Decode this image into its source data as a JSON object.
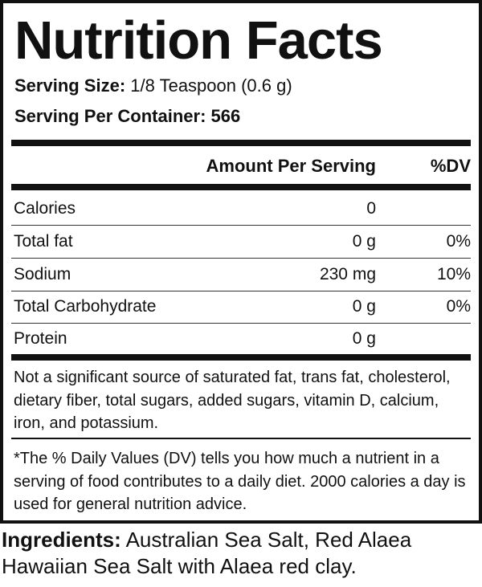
{
  "title": "Nutrition Facts",
  "serving_size": {
    "label": "Serving Size:",
    "value": "1/8 Teaspoon (0.6 g)"
  },
  "servings_per_container": {
    "label": "Serving Per Container:",
    "value": "566"
  },
  "table": {
    "headers": {
      "amount": "Amount Per Serving",
      "dv": "%DV"
    },
    "rows": [
      {
        "nutrient": "Calories",
        "amount": "0",
        "dv": ""
      },
      {
        "nutrient": "Total fat",
        "amount": "0 g",
        "dv": "0%"
      },
      {
        "nutrient": "Sodium",
        "amount": "230 mg",
        "dv": "10%"
      },
      {
        "nutrient": "Total Carbohydrate",
        "amount": "0 g",
        "dv": "0%"
      },
      {
        "nutrient": "Protein",
        "amount": "0 g",
        "dv": ""
      }
    ]
  },
  "not_significant": "Not a significant source of saturated fat, trans fat, cholesterol, dietary fiber, total sugars, added sugars, vitamin D, calcium, iron, and potassium.",
  "footnote": "*The % Daily Values (DV) tells you how much a nutrient in a serving of food contributes to a daily diet. 2000 calories a day is used for general nutrition advice.",
  "ingredients": {
    "label": "Ingredients:",
    "value": "Australian Sea Salt, Red Alaea Hawaiian Sea Salt with Alaea red clay."
  }
}
